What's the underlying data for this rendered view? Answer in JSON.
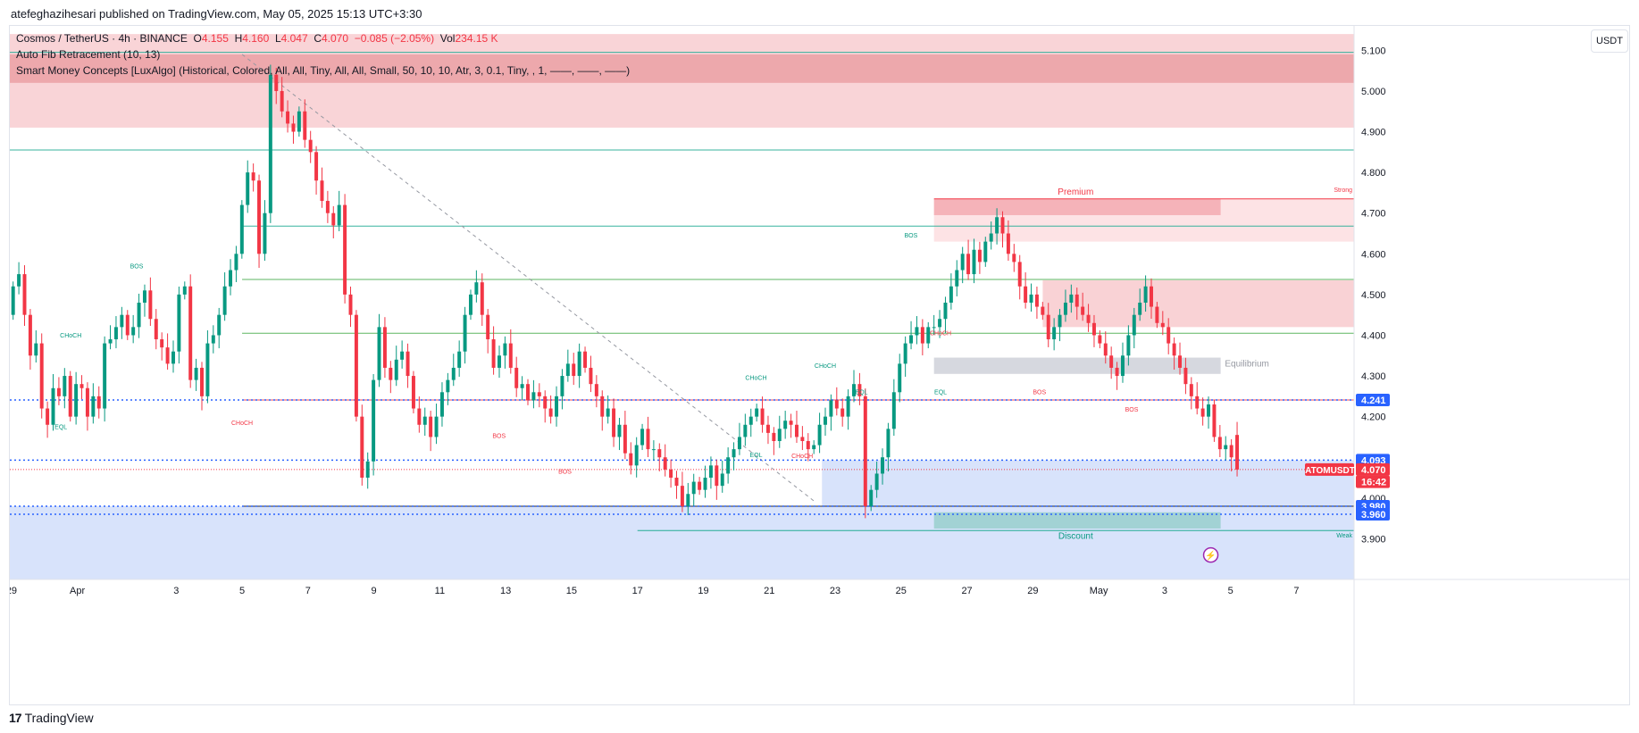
{
  "header": {
    "publisher_line": "atefeghazihesari published on TradingView.com, May 05, 2025 15:13 UTC+3:30"
  },
  "legend": {
    "symbol": "Cosmos / TetherUS · 4h · BINANCE",
    "o_label": "O",
    "o_value": "4.155",
    "h_label": "H",
    "h_value": "4.160",
    "l_label": "L",
    "l_value": "4.047",
    "c_label": "C",
    "c_value": "4.070",
    "change": "−0.085 (−2.05%)",
    "vol_label": "Vol",
    "vol_value": "234.15 K",
    "indicator_1": "Auto Fib Retracement (10, 13)",
    "indicator_2": "Smart Money Concepts [LuxAlgo] (Historical, Colored, All, All, Tiny, All, All, Small, 50, 10, 10, Atr, 3, 0.1, Tiny, , 1, ——, ——, ——)"
  },
  "currency_button": "USDT",
  "footer": {
    "brand": "TradingView",
    "logo_glyph": "17"
  },
  "colors": {
    "bull": "#089981",
    "bear": "#f23645",
    "premium_zone": "#f7c5c9",
    "premium_zone_dark": "#eba0a5",
    "discount_zone": "#d6e2fb",
    "equilibrium": "#d1d4dc",
    "fib_teal": "#22ab94",
    "fib_green": "#4caf50",
    "fib_red": "#f23645"
  },
  "chart_data": {
    "type": "candlestick",
    "title": "Cosmos / TetherUS · 4h · BINANCE",
    "ylim": [
      3.8,
      5.16
    ],
    "y_ticks": [
      "5.100",
      "5.000",
      "4.900",
      "4.800",
      "4.700",
      "4.600",
      "4.500",
      "4.400",
      "4.300",
      "4.200",
      "4.000",
      "3.900"
    ],
    "y_tick_values": [
      5.1,
      5.0,
      4.9,
      4.8,
      4.7,
      4.6,
      4.5,
      4.4,
      4.3,
      4.2,
      4.0,
      3.9
    ],
    "x_ticks": [
      "29",
      "Apr",
      "3",
      "5",
      "7",
      "9",
      "11",
      "13",
      "15",
      "17",
      "19",
      "21",
      "23",
      "25",
      "27",
      "29",
      "May",
      "3",
      "5",
      "7"
    ],
    "x_tick_days": [
      -3,
      -1,
      2,
      4,
      6,
      8,
      10,
      12,
      14,
      16,
      18,
      20,
      22,
      24,
      26,
      28,
      30,
      32,
      34,
      36
    ],
    "x_range_days": [
      -3.05,
      37.75
    ],
    "price_labels": [
      {
        "text": "4.241",
        "value": 4.241,
        "color": "#2962ff"
      },
      {
        "text": "4.093",
        "value": 4.093,
        "color": "#2962ff"
      },
      {
        "text": "4.070",
        "value": 4.07,
        "color": "#f23645"
      },
      {
        "text": "16:42",
        "value": 4.04,
        "color": "#f23645"
      },
      {
        "text": "3.980",
        "value": 3.98,
        "color": "#2962ff"
      },
      {
        "text": "3.960",
        "value": 3.96,
        "color": "#2962ff"
      }
    ],
    "symbol_tag": "ATOMUSDT",
    "zone_labels": {
      "premium": "Premium",
      "equilibrium": "Equilibrium",
      "discount": "Discount",
      "strong": "Strong",
      "weak": "Weak"
    },
    "structure_labels": [
      {
        "text": "EQL",
        "day": -1.5,
        "value": 4.17,
        "color": "#089981"
      },
      {
        "text": "CHoCH",
        "day": -1.2,
        "value": 4.395,
        "color": "#089981"
      },
      {
        "text": "BOS",
        "day": 0.8,
        "value": 4.565,
        "color": "#089981"
      },
      {
        "text": "CHoCH",
        "day": 4.0,
        "value": 4.18,
        "color": "#f23645"
      },
      {
        "text": "BOS",
        "day": 11.8,
        "value": 4.148,
        "color": "#f23645"
      },
      {
        "text": "BOS",
        "day": 13.8,
        "value": 4.06,
        "color": "#f23645"
      },
      {
        "text": "EQL",
        "day": 19.6,
        "value": 4.1,
        "color": "#089981"
      },
      {
        "text": "CHoCH",
        "day": 19.6,
        "value": 4.29,
        "color": "#089981"
      },
      {
        "text": "CHoCH",
        "day": 21.0,
        "value": 4.098,
        "color": "#f23645"
      },
      {
        "text": "CHoCH",
        "day": 21.7,
        "value": 4.32,
        "color": "#089981"
      },
      {
        "text": "EQL",
        "day": 22.8,
        "value": 4.255,
        "color": "#089981"
      },
      {
        "text": "BOS",
        "day": 24.3,
        "value": 4.64,
        "color": "#089981"
      },
      {
        "text": "CHoCH",
        "day": 25.2,
        "value": 4.4,
        "color": "#f23645"
      },
      {
        "text": "EQL",
        "day": 25.2,
        "value": 4.255,
        "color": "#089981"
      },
      {
        "text": "BOS",
        "day": 28.2,
        "value": 4.255,
        "color": "#f23645"
      },
      {
        "text": "BOS",
        "day": 31.0,
        "value": 4.212,
        "color": "#f23645"
      }
    ],
    "fib_levels": [
      5.095,
      4.855,
      4.668,
      4.537,
      4.405,
      4.241,
      3.98
    ],
    "series": [
      {
        "name": "ATOMUSDT 4h close",
        "values": [
          4.52,
          4.55,
          4.45,
          4.35,
          4.38,
          4.22,
          4.18,
          4.27,
          4.25,
          4.3,
          4.2,
          4.28,
          4.27,
          4.2,
          4.25,
          4.22,
          4.38,
          4.39,
          4.42,
          4.45,
          4.4,
          4.42,
          4.48,
          4.51,
          4.44,
          4.39,
          4.37,
          4.33,
          4.36,
          4.5,
          4.52,
          4.29,
          4.32,
          4.25,
          4.38,
          4.4,
          4.45,
          4.52,
          4.56,
          4.6,
          4.72,
          4.8,
          4.78,
          4.6,
          4.7,
          5.04,
          5.0,
          4.95,
          4.92,
          4.9,
          4.95,
          4.88,
          4.85,
          4.78,
          4.73,
          4.7,
          4.67,
          4.72,
          4.5,
          4.45,
          4.2,
          4.05,
          4.09,
          4.29,
          4.42,
          4.32,
          4.29,
          4.34,
          4.36,
          4.3,
          4.22,
          4.18,
          4.2,
          4.15,
          4.2,
          4.26,
          4.29,
          4.32,
          4.36,
          4.45,
          4.5,
          4.53,
          4.45,
          4.39,
          4.32,
          4.35,
          4.38,
          4.32,
          4.27,
          4.28,
          4.24,
          4.26,
          4.25,
          4.22,
          4.2,
          4.25,
          4.3,
          4.33,
          4.3,
          4.36,
          4.32,
          4.28,
          4.25,
          4.2,
          4.22,
          4.15,
          4.18,
          4.11,
          4.08,
          4.13,
          4.17,
          4.12,
          4.12,
          4.1,
          4.07,
          4.05,
          4.03,
          3.98,
          4.01,
          4.04,
          4.02,
          4.05,
          4.08,
          4.03,
          4.06,
          4.1,
          4.12,
          4.15,
          4.18,
          4.2,
          4.22,
          4.18,
          4.16,
          4.14,
          4.17,
          4.19,
          4.18,
          4.15,
          4.14,
          4.12,
          4.13,
          4.18,
          4.2,
          4.24,
          4.22,
          4.2,
          4.25,
          4.28,
          4.25,
          3.98,
          4.02,
          4.06,
          4.1,
          4.17,
          4.26,
          4.33,
          4.38,
          4.4,
          4.42,
          4.38,
          4.42,
          4.42,
          4.44,
          4.48,
          4.52,
          4.56,
          4.6,
          4.55,
          4.61,
          4.58,
          4.63,
          4.65,
          4.69,
          4.65,
          4.6,
          4.58,
          4.52,
          4.48,
          4.5,
          4.47,
          4.45,
          4.39,
          4.42,
          4.45,
          4.48,
          4.5,
          4.47,
          4.45,
          4.43,
          4.4,
          4.38,
          4.35,
          4.32,
          4.3,
          4.35,
          4.4,
          4.45,
          4.48,
          4.52,
          4.47,
          4.43,
          4.42,
          4.38,
          4.35,
          4.32,
          4.28,
          4.25,
          4.22,
          4.2,
          4.23,
          4.15,
          4.12,
          4.13,
          4.1,
          4.07
        ]
      }
    ]
  }
}
